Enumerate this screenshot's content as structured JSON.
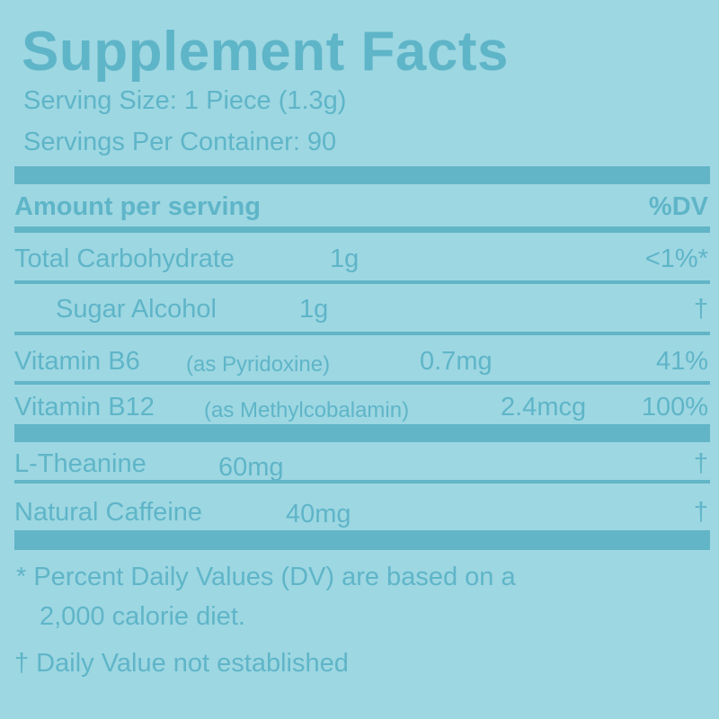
{
  "title": "Supplement Facts",
  "serving_size": "Serving Size: 1 Piece (1.3g)",
  "servings_per_container": "Servings Per Container: 90",
  "header": {
    "amount": "Amount per serving",
    "dv": "%DV"
  },
  "rows": [
    {
      "name": "Total Carbohydrate",
      "note": "",
      "amount": "1g",
      "dv": "<1%*"
    },
    {
      "name": "Sugar Alcohol",
      "note": "",
      "amount": "1g",
      "dv": "†"
    },
    {
      "name": "Vitamin B6",
      "note": "(as Pyridoxine)",
      "amount": "0.7mg",
      "dv": "41%"
    },
    {
      "name": "Vitamin B12",
      "note": "(as Methylcobalamin)",
      "amount": "2.4mcg",
      "dv": "100%"
    },
    {
      "name": "L-Theanine",
      "note": "",
      "amount": "60mg",
      "dv": "†"
    },
    {
      "name": "Natural Caffeine",
      "note": "",
      "amount": "40mg",
      "dv": "†"
    }
  ],
  "footnotes": {
    "dv_line1": "* Percent Daily Values (DV) are based on a",
    "dv_line2": "2,000 calorie diet.",
    "dagger": "† Daily Value not established"
  },
  "colors": {
    "background": "#9dd7e2",
    "ink": "#62b5c7"
  }
}
